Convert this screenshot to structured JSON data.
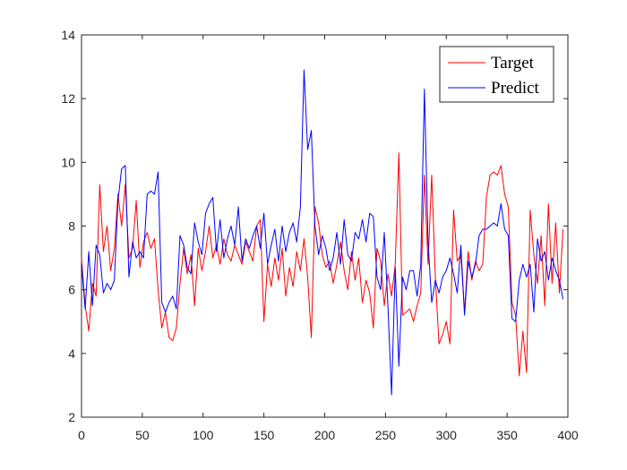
{
  "chart_data": {
    "type": "line",
    "title": "",
    "xlabel": "",
    "ylabel": "",
    "xlim": [
      0,
      400
    ],
    "ylim": [
      2,
      14
    ],
    "x_ticks": [
      0,
      50,
      100,
      150,
      200,
      250,
      300,
      350,
      400
    ],
    "y_ticks": [
      2,
      4,
      6,
      8,
      10,
      12,
      14
    ],
    "grid": false,
    "legend_position": "top-right",
    "series": [
      {
        "name": "Target",
        "color": "#ff0000",
        "x": [
          0,
          3,
          6,
          9,
          12,
          15,
          18,
          21,
          24,
          27,
          30,
          33,
          36,
          39,
          42,
          45,
          48,
          51,
          54,
          57,
          60,
          63,
          66,
          69,
          72,
          75,
          78,
          81,
          84,
          87,
          90,
          93,
          96,
          99,
          102,
          105,
          108,
          111,
          114,
          117,
          120,
          123,
          126,
          129,
          132,
          135,
          138,
          141,
          144,
          147,
          150,
          153,
          156,
          159,
          162,
          165,
          168,
          171,
          174,
          177,
          180,
          183,
          186,
          189,
          192,
          195,
          198,
          201,
          204,
          207,
          210,
          213,
          216,
          219,
          222,
          225,
          228,
          231,
          234,
          237,
          240,
          243,
          246,
          249,
          252,
          255,
          258,
          261,
          264,
          267,
          270,
          273,
          276,
          279,
          282,
          285,
          288,
          291,
          294,
          297,
          300,
          303,
          306,
          309,
          312,
          315,
          318,
          321,
          324,
          327,
          330,
          333,
          336,
          339,
          342,
          345,
          348,
          351,
          354,
          357,
          360,
          363,
          366,
          369,
          372,
          375,
          378,
          381,
          384,
          387,
          390,
          393,
          396
        ],
        "values": [
          7.0,
          5.5,
          4.7,
          6.2,
          5.8,
          9.3,
          7.2,
          8.0,
          6.6,
          7.3,
          9.0,
          8.0,
          9.3,
          7.0,
          7.3,
          8.8,
          6.7,
          7.5,
          7.8,
          7.3,
          7.6,
          6.0,
          4.8,
          5.3,
          4.5,
          4.4,
          4.8,
          6.2,
          7.3,
          6.5,
          7.1,
          5.5,
          7.3,
          6.6,
          7.2,
          8.0,
          7.0,
          7.4,
          6.8,
          7.6,
          7.1,
          6.9,
          7.4,
          7.1,
          6.8,
          7.5,
          7.2,
          6.9,
          8.0,
          8.2,
          5.0,
          6.8,
          6.1,
          7.0,
          6.3,
          7.3,
          5.8,
          6.7,
          6.1,
          7.2,
          6.6,
          7.6,
          6.4,
          4.5,
          8.6,
          8.1,
          7.1,
          6.7,
          6.9,
          6.2,
          6.8,
          7.5,
          6.6,
          6.0,
          7.2,
          6.3,
          7.0,
          5.6,
          6.3,
          5.9,
          4.8,
          7.3,
          6.9,
          5.5,
          6.5,
          5.8,
          6.8,
          10.3,
          5.2,
          5.3,
          5.4,
          5.0,
          5.5,
          5.9,
          9.6,
          6.8,
          9.6,
          6.4,
          4.3,
          4.6,
          5.0,
          4.3,
          8.5,
          6.9,
          7.1,
          5.3,
          7.2,
          6.3,
          6.9,
          6.6,
          6.8,
          8.9,
          9.6,
          9.7,
          9.6,
          9.9,
          9.0,
          8.6,
          5.6,
          5.2,
          3.3,
          4.7,
          3.4,
          8.5,
          7.1,
          6.2,
          7.7,
          5.5,
          8.7,
          6.2,
          8.1,
          5.9,
          7.9
        ]
      },
      {
        "name": "Predict",
        "color": "#0000ff",
        "x": [
          0,
          3,
          6,
          9,
          12,
          15,
          18,
          21,
          24,
          27,
          30,
          33,
          36,
          39,
          42,
          45,
          48,
          51,
          54,
          57,
          60,
          63,
          66,
          69,
          72,
          75,
          78,
          81,
          84,
          87,
          90,
          93,
          96,
          99,
          102,
          105,
          108,
          111,
          114,
          117,
          120,
          123,
          126,
          129,
          132,
          135,
          138,
          141,
          144,
          147,
          150,
          153,
          156,
          159,
          162,
          165,
          168,
          171,
          174,
          177,
          180,
          183,
          186,
          189,
          192,
          195,
          198,
          201,
          204,
          207,
          210,
          213,
          216,
          219,
          222,
          225,
          228,
          231,
          234,
          237,
          240,
          243,
          246,
          249,
          252,
          255,
          258,
          261,
          264,
          267,
          270,
          273,
          276,
          279,
          282,
          285,
          288,
          291,
          294,
          297,
          300,
          303,
          306,
          309,
          312,
          315,
          318,
          321,
          324,
          327,
          330,
          333,
          336,
          339,
          342,
          345,
          348,
          351,
          354,
          357,
          360,
          363,
          366,
          369,
          372,
          375,
          378,
          381,
          384,
          387,
          390,
          393,
          396
        ],
        "values": [
          6.8,
          5.4,
          7.2,
          5.5,
          7.4,
          7.1,
          5.9,
          6.2,
          6.0,
          6.3,
          8.8,
          9.8,
          9.9,
          6.4,
          7.5,
          7.0,
          7.2,
          7.0,
          9.0,
          9.1,
          9.0,
          9.7,
          5.6,
          5.3,
          5.6,
          5.8,
          5.4,
          7.7,
          7.4,
          6.7,
          6.5,
          8.1,
          7.5,
          7.1,
          8.4,
          8.7,
          8.9,
          7.2,
          8.2,
          7.0,
          7.6,
          8.0,
          7.4,
          8.6,
          6.9,
          7.6,
          7.3,
          7.7,
          8.0,
          7.3,
          8.4,
          6.8,
          7.4,
          7.9,
          6.9,
          8.0,
          7.2,
          7.8,
          8.1,
          7.5,
          8.6,
          12.9,
          10.4,
          11.0,
          8.0,
          7.1,
          7.7,
          7.3,
          6.6,
          7.0,
          7.8,
          6.8,
          8.2,
          7.1,
          6.9,
          7.8,
          7.6,
          8.2,
          7.5,
          8.4,
          8.3,
          6.4,
          6.0,
          7.8,
          5.5,
          2.7,
          6.7,
          3.6,
          6.4,
          6.0,
          6.6,
          6.6,
          5.8,
          6.8,
          12.3,
          7.5,
          5.6,
          6.3,
          5.9,
          6.4,
          6.6,
          7.0,
          6.5,
          5.9,
          7.4,
          5.2,
          6.9,
          6.4,
          6.8,
          7.7,
          7.9,
          7.9,
          8.0,
          8.1,
          8.0,
          8.7,
          7.9,
          7.7,
          5.1,
          5.0,
          6.3,
          6.8,
          6.4,
          6.8,
          5.3,
          7.6,
          6.9,
          7.2,
          6.3,
          7.0,
          6.6,
          6.3,
          5.7
        ]
      }
    ]
  }
}
